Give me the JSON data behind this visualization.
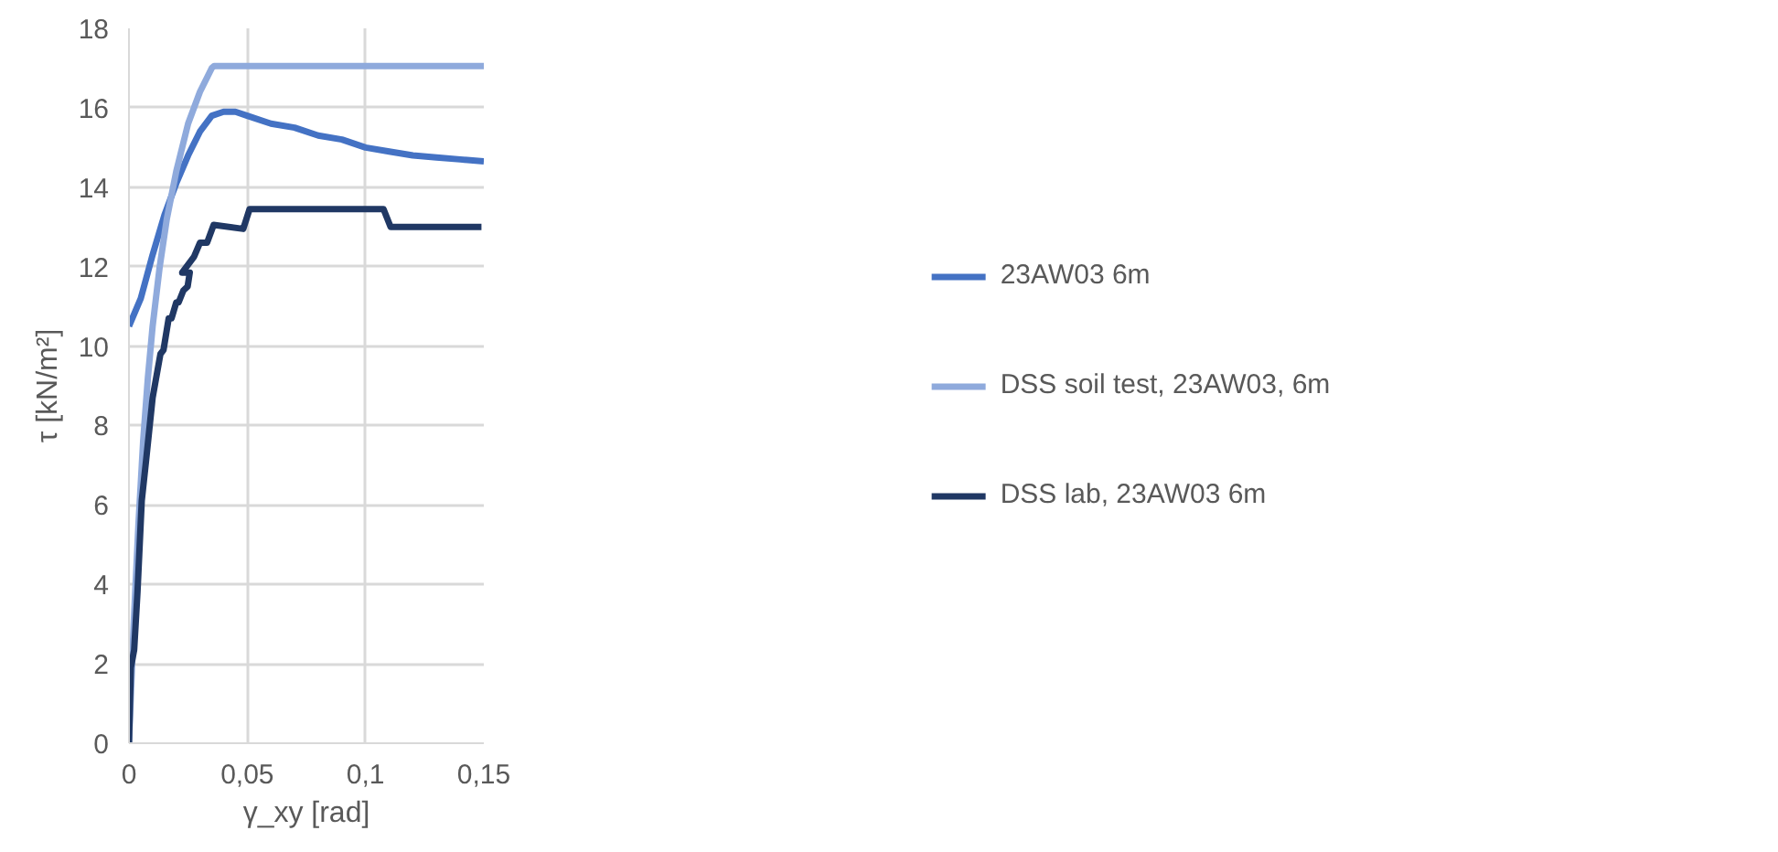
{
  "chart_data": {
    "type": "line",
    "xlabel": "γ_xy [rad]",
    "ylabel": "τ [kN/m²]",
    "xlim": [
      0,
      0.15
    ],
    "ylim": [
      0,
      18
    ],
    "xticks": [
      0,
      {
        "value": 0.05,
        "label": "0,05"
      },
      {
        "value": 0.1,
        "label": "0,1"
      },
      {
        "value": 0.15,
        "label": "0,15"
      }
    ],
    "yticks": [
      0,
      2,
      4,
      6,
      8,
      10,
      12,
      14,
      16,
      18
    ],
    "grid": true,
    "legend": "right",
    "line_style": "solid",
    "marker": "none",
    "series": [
      {
        "name": "23AW03 6m",
        "color": "#4472c4",
        "x": [
          0,
          0.005,
          0.01,
          0.015,
          0.02,
          0.025,
          0.03,
          0.035,
          0.04,
          0.045,
          0.05,
          0.06,
          0.07,
          0.08,
          0.09,
          0.1,
          0.11,
          0.12,
          0.13,
          0.14,
          0.15
        ],
        "values": [
          10.5,
          11.2,
          12.3,
          13.3,
          14.1,
          14.8,
          15.4,
          15.8,
          15.9,
          15.9,
          15.8,
          15.6,
          15.5,
          15.3,
          15.2,
          15.0,
          14.9,
          14.8,
          14.75,
          14.7,
          14.65
        ]
      },
      {
        "name": "DSS soil test, 23AW03, 6m",
        "color": "#8faadc",
        "x": [
          0,
          0.002,
          0.004,
          0.006,
          0.008,
          0.01,
          0.013,
          0.016,
          0.02,
          0.025,
          0.03,
          0.035,
          0.036,
          0.15
        ],
        "values": [
          0,
          3,
          5.5,
          7.6,
          9.2,
          10.5,
          12,
          13.2,
          14.4,
          15.6,
          16.4,
          17,
          17.05,
          17.05
        ]
      },
      {
        "name": "DSS lab, 23AW03 6m",
        "color": "#203864",
        "x": [
          0,
          0.0008,
          0.0022,
          0.0036,
          0.0054,
          0.0072,
          0.01,
          0.0133,
          0.0146,
          0.0168,
          0.018,
          0.02,
          0.021,
          0.023,
          0.0248,
          0.0257,
          0.0225,
          0.0275,
          0.03,
          0.033,
          0.0358,
          0.0483,
          0.051,
          0.1076,
          0.1106,
          0.149
        ],
        "values": [
          0,
          1.9,
          2.35,
          3.8,
          6.1,
          7.1,
          8.7,
          9.8,
          9.9,
          10.7,
          10.7,
          11.1,
          11.1,
          11.4,
          11.5,
          11.85,
          11.85,
          12.25,
          12.6,
          12.6,
          13.05,
          12.95,
          13.45,
          13.45,
          13.0,
          13.0
        ]
      }
    ]
  }
}
